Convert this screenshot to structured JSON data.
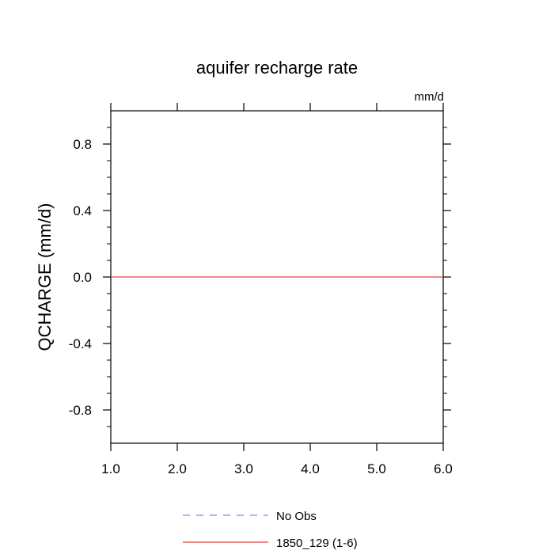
{
  "chart_data": {
    "type": "line",
    "title": "aquifer recharge rate",
    "units_label": "mm/d",
    "ylabel": "QCHARGE  (mm/d)",
    "xlabel": "",
    "xlim": [
      1.0,
      6.0
    ],
    "ylim": [
      -1.0,
      1.0
    ],
    "x_ticks": [
      1.0,
      2.0,
      3.0,
      4.0,
      5.0,
      6.0
    ],
    "x_tick_labels": [
      "1.0",
      "2.0",
      "3.0",
      "4.0",
      "5.0",
      "6.0"
    ],
    "y_ticks": [
      0.8,
      0.4,
      0.0,
      -0.4,
      -0.8
    ],
    "y_tick_labels": [
      "0.8",
      "0.4",
      "0.0",
      "-0.4",
      "-0.8"
    ],
    "grid": false,
    "legend_position": "bottom",
    "series": [
      {
        "name": "No Obs",
        "color": "#8888ee",
        "dash": "dashed",
        "x": [],
        "values": []
      },
      {
        "name": "1850_129 (1-6)",
        "color": "#e84040",
        "dash": "solid",
        "x": [
          1,
          2,
          3,
          4,
          5,
          6
        ],
        "values": [
          0,
          0,
          0,
          0,
          0,
          0
        ]
      }
    ]
  }
}
